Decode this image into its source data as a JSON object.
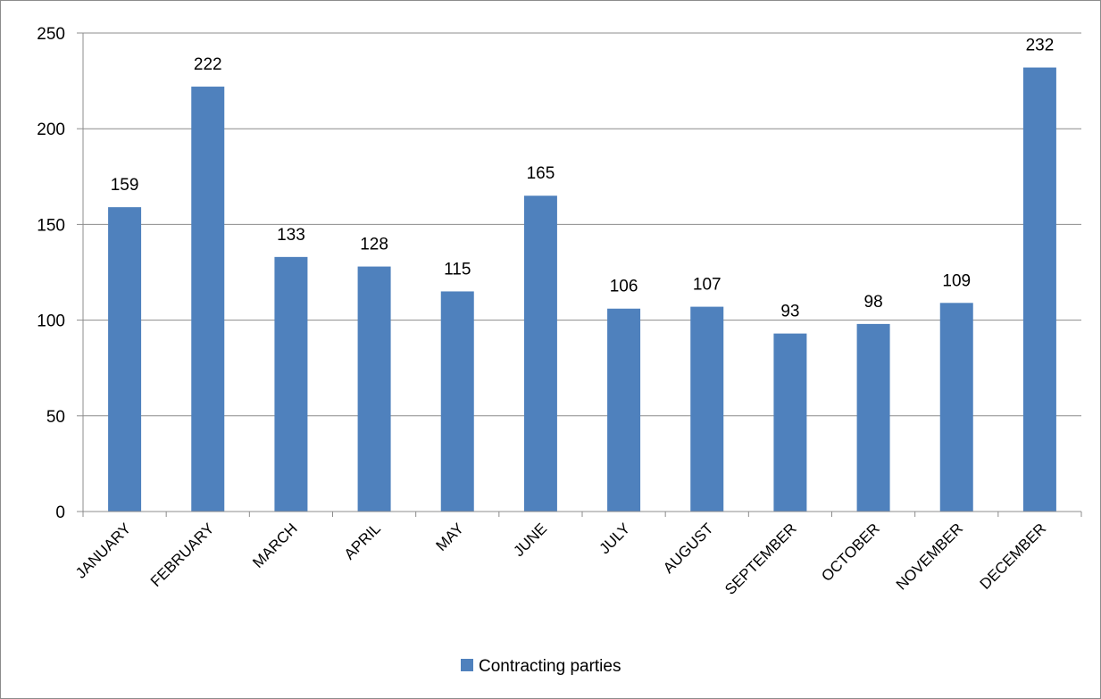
{
  "chart_data": {
    "type": "bar",
    "categories": [
      "JANUARY",
      "FEBRUARY",
      "MARCH",
      "APRIL",
      "MAY",
      "JUNE",
      "JULY",
      "AUGUST",
      "SEPTEMBER",
      "OCTOBER",
      "NOVEMBER",
      "DECEMBER"
    ],
    "series": [
      {
        "name": "Contracting parties",
        "values": [
          159,
          222,
          133,
          128,
          115,
          165,
          106,
          107,
          93,
          98,
          109,
          232
        ],
        "color": "#4f81bd"
      }
    ],
    "title": "",
    "xlabel": "",
    "ylabel": "",
    "ylim": [
      0,
      250
    ],
    "yticks": [
      0,
      50,
      100,
      150,
      200,
      250
    ],
    "grid": true,
    "legend_position": "bottom",
    "data_labels": true
  }
}
